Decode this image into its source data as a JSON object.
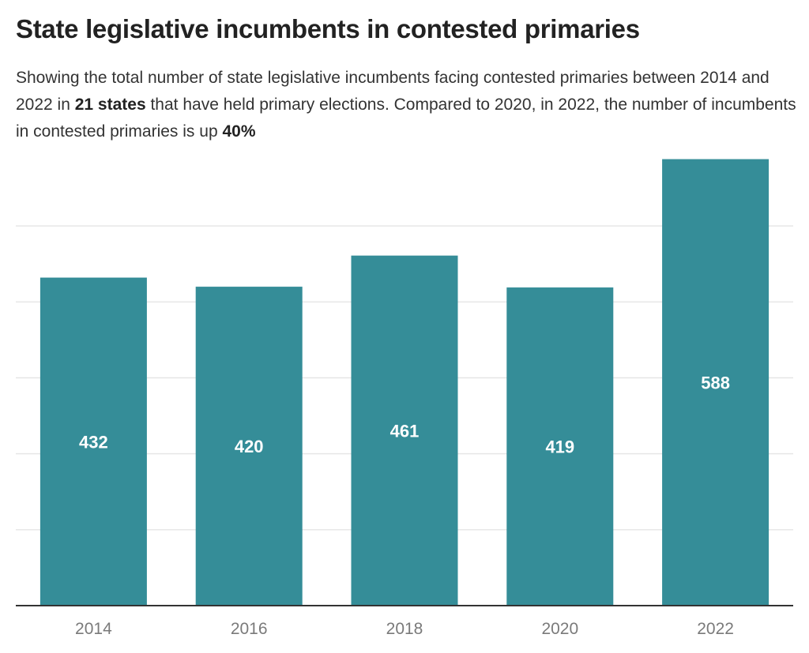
{
  "chart_data": {
    "type": "bar",
    "title": "State legislative incumbents in contested primaries",
    "subtitle": {
      "part1": "Showing the total number of state legislative incumbents facing contested primaries between 2014 and 2022 in ",
      "bold1": "21 states",
      "part2": " that have held primary elections. Compared to 2020, in 2022, the number of incumbents in contested primaries is up ",
      "bold2": "40%"
    },
    "categories": [
      "2014",
      "2016",
      "2018",
      "2020",
      "2022"
    ],
    "values": [
      432,
      420,
      461,
      419,
      588
    ],
    "data_labels": [
      "432",
      "420",
      "461",
      "419",
      "588"
    ],
    "ylim": [
      0,
      600
    ],
    "grid": true,
    "bar_color": "#358d98",
    "gridline_color": "#e6e6e6",
    "axis_color": "#333333"
  }
}
